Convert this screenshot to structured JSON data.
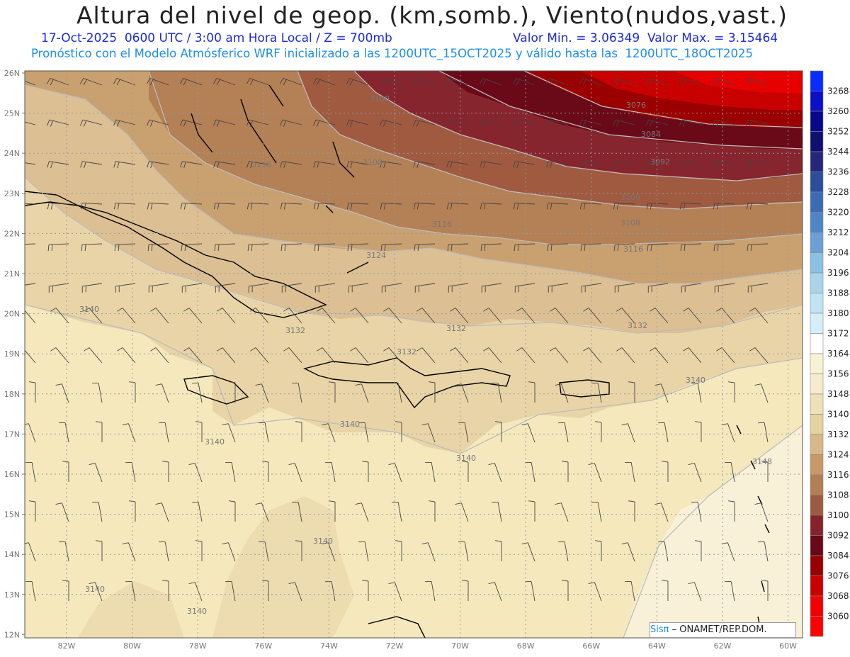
{
  "title": "Altura del nivel de geop. (km,somb.), Viento(nudos,vast.)",
  "subtitle": {
    "datetime": "17-Oct-2025  0600 UTC / 3:00 am Hora Local / Z = 700mb",
    "minmax": "Valor Min. = 3.06349  Valor Max. = 3.15464",
    "model": "Pronóstico con el Modelo Atmósferico WRF inicializado a las 1200UTC_15OCT2025 y válido hasta las  1200UTC_18OCT2025"
  },
  "axes": {
    "lat_labels": [
      "26N",
      "25N",
      "24N",
      "23N",
      "22N",
      "21N",
      "20N",
      "19N",
      "18N",
      "17N",
      "16N",
      "15N",
      "14N",
      "13N",
      "12N"
    ],
    "lon_labels": [
      "82W",
      "80W",
      "78W",
      "76W",
      "74W",
      "72W",
      "70W",
      "68W",
      "66W",
      "64W",
      "62W",
      "60W"
    ]
  },
  "contour_labels": [
    "3076",
    "3084",
    "3092",
    "3100",
    "3108",
    "3116",
    "3124",
    "3132",
    "3140",
    "3148"
  ],
  "colorbar": {
    "levels": [
      "3268",
      "3260",
      "3252",
      "3244",
      "3236",
      "3228",
      "3220",
      "3212",
      "3204",
      "3196",
      "3188",
      "3180",
      "3172",
      "3164",
      "3156",
      "3148",
      "3140",
      "3132",
      "3124",
      "3116",
      "3108",
      "3100",
      "3092",
      "3084",
      "3076",
      "3068",
      "3060"
    ],
    "colors": [
      "#0a2cff",
      "#0a10c8",
      "#08088c",
      "#101070",
      "#25287a",
      "#2a4e9c",
      "#3a6cb4",
      "#4d86c6",
      "#6aa0d4",
      "#8cc0e2",
      "#a8d4ec",
      "#c0e4f2",
      "#d6eef6",
      "#ffffff",
      "#f8f2d4",
      "#f4eccc",
      "#eee0b8",
      "#e6d2a0",
      "#d8b888",
      "#c8986a",
      "#b47e54",
      "#9c5a40",
      "#86222c",
      "#680818",
      "#980000",
      "#c80000",
      "#f20000",
      "#ff0000"
    ]
  },
  "credit": {
    "logo": "Sisπ",
    "text": "– ONAMET/REP.DOM."
  }
}
